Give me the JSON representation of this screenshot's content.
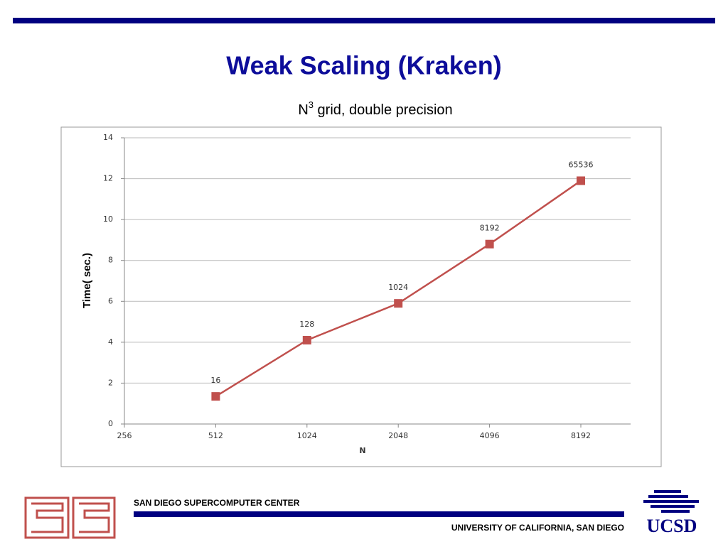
{
  "chart_data": {
    "type": "line",
    "title": "Weak Scaling (Kraken)",
    "subtitle_parts": [
      "N",
      "3",
      " grid, double precision"
    ],
    "x_label": "N",
    "y_label": "Time( sec.)",
    "categories": [
      "256",
      "512",
      "1024",
      "2048",
      "4096",
      "8192"
    ],
    "series": [
      {
        "name": "Time",
        "color": "#c0504d",
        "values": [
          null,
          1.35,
          4.1,
          5.9,
          8.8,
          11.9
        ]
      }
    ],
    "annotations": [
      null,
      "16",
      "128",
      "1024",
      "8192",
      "65536"
    ],
    "ylim": [
      0,
      14
    ],
    "yticks": [
      0,
      2,
      4,
      6,
      8,
      10,
      12,
      14
    ],
    "grid": true
  },
  "footer": {
    "left": "SAN DIEGO SUPERCOMPUTER CENTER",
    "right": "UNIVERSITY OF CALIFORNIA, SAN DIEGO",
    "logo": "UCSD"
  }
}
